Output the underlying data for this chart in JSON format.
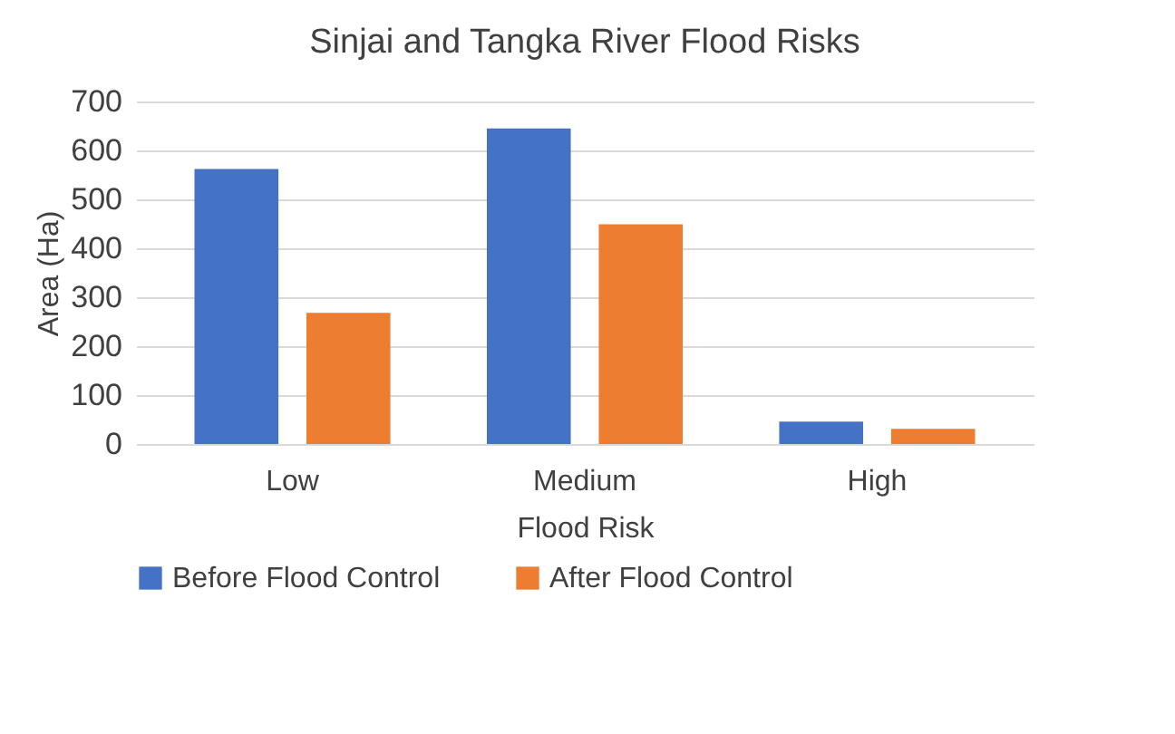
{
  "chart_data": {
    "type": "bar",
    "title": "Sinjai and Tangka River Flood Risks",
    "xlabel": "Flood Risk",
    "ylabel": "Area (Ha)",
    "categories": [
      "Low",
      "Medium",
      "High"
    ],
    "series": [
      {
        "name": "Before Flood Control",
        "color": "#4472c4",
        "values": [
          562,
          645,
          46
        ]
      },
      {
        "name": "After Flood Control",
        "color": "#ed7d31",
        "values": [
          268,
          449,
          31
        ]
      }
    ],
    "ylim": [
      0,
      700
    ],
    "yticks": [
      0,
      100,
      200,
      300,
      400,
      500,
      600,
      700
    ],
    "grid": "y",
    "legend": "bottom"
  }
}
